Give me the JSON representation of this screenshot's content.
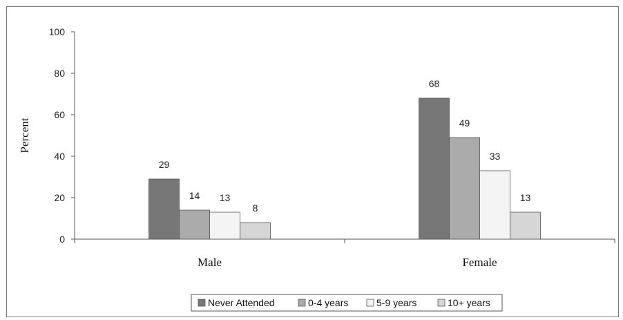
{
  "chart_data": {
    "type": "bar",
    "ylabel": "Percent",
    "ylim": [
      0,
      100
    ],
    "yticks": [
      0,
      20,
      40,
      60,
      80,
      100
    ],
    "categories": [
      "Male",
      "Female"
    ],
    "series": [
      {
        "name": "Never Attended",
        "values": [
          29,
          68
        ],
        "color": "#777777"
      },
      {
        "name": "0-4 years",
        "values": [
          14,
          49
        ],
        "color": "#ababab"
      },
      {
        "name": "5-9 years",
        "values": [
          13,
          33
        ],
        "color": "#f4f4f4"
      },
      {
        "name": "10+ years",
        "values": [
          8,
          13
        ],
        "color": "#d6d6d6"
      }
    ],
    "legend_position": "bottom",
    "grid": false
  }
}
